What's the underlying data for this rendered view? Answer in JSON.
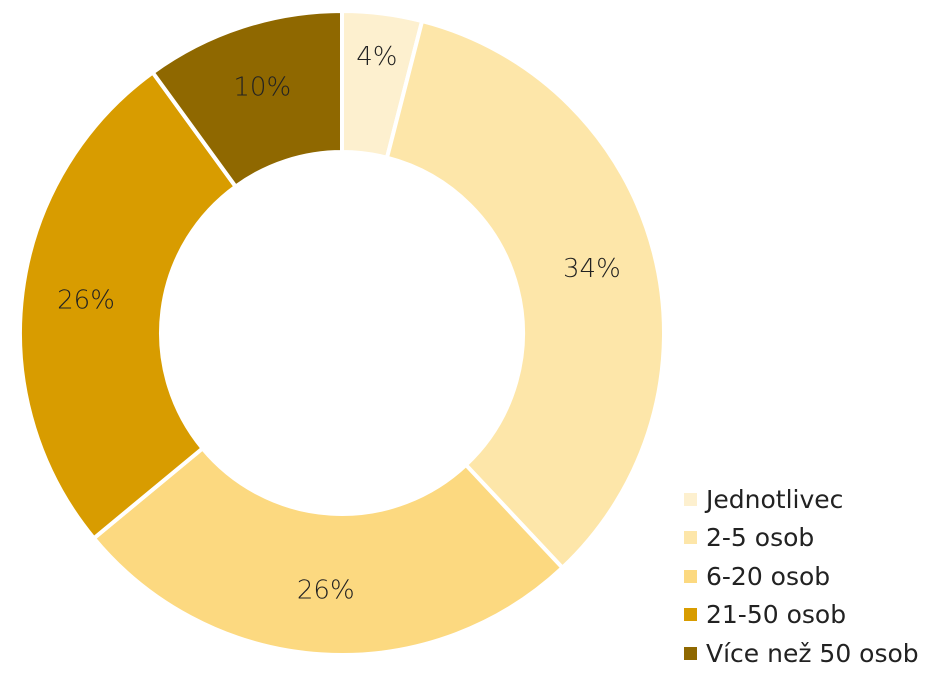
{
  "chart_data": {
    "type": "pie",
    "variant": "donut",
    "categories": [
      "Jednotlivec",
      "2-5 osob",
      "6-20 osob",
      "21-50 osob",
      "Více než 50 osob"
    ],
    "values": [
      4,
      34,
      26,
      26,
      10
    ],
    "data_labels": [
      "4%",
      "34%",
      "26%",
      "26%",
      "10%"
    ],
    "colors": [
      "#FDF0CF",
      "#FDE6A9",
      "#FCD980",
      "#D89C00",
      "#8F6800"
    ],
    "legend_position": "bottom-right"
  }
}
